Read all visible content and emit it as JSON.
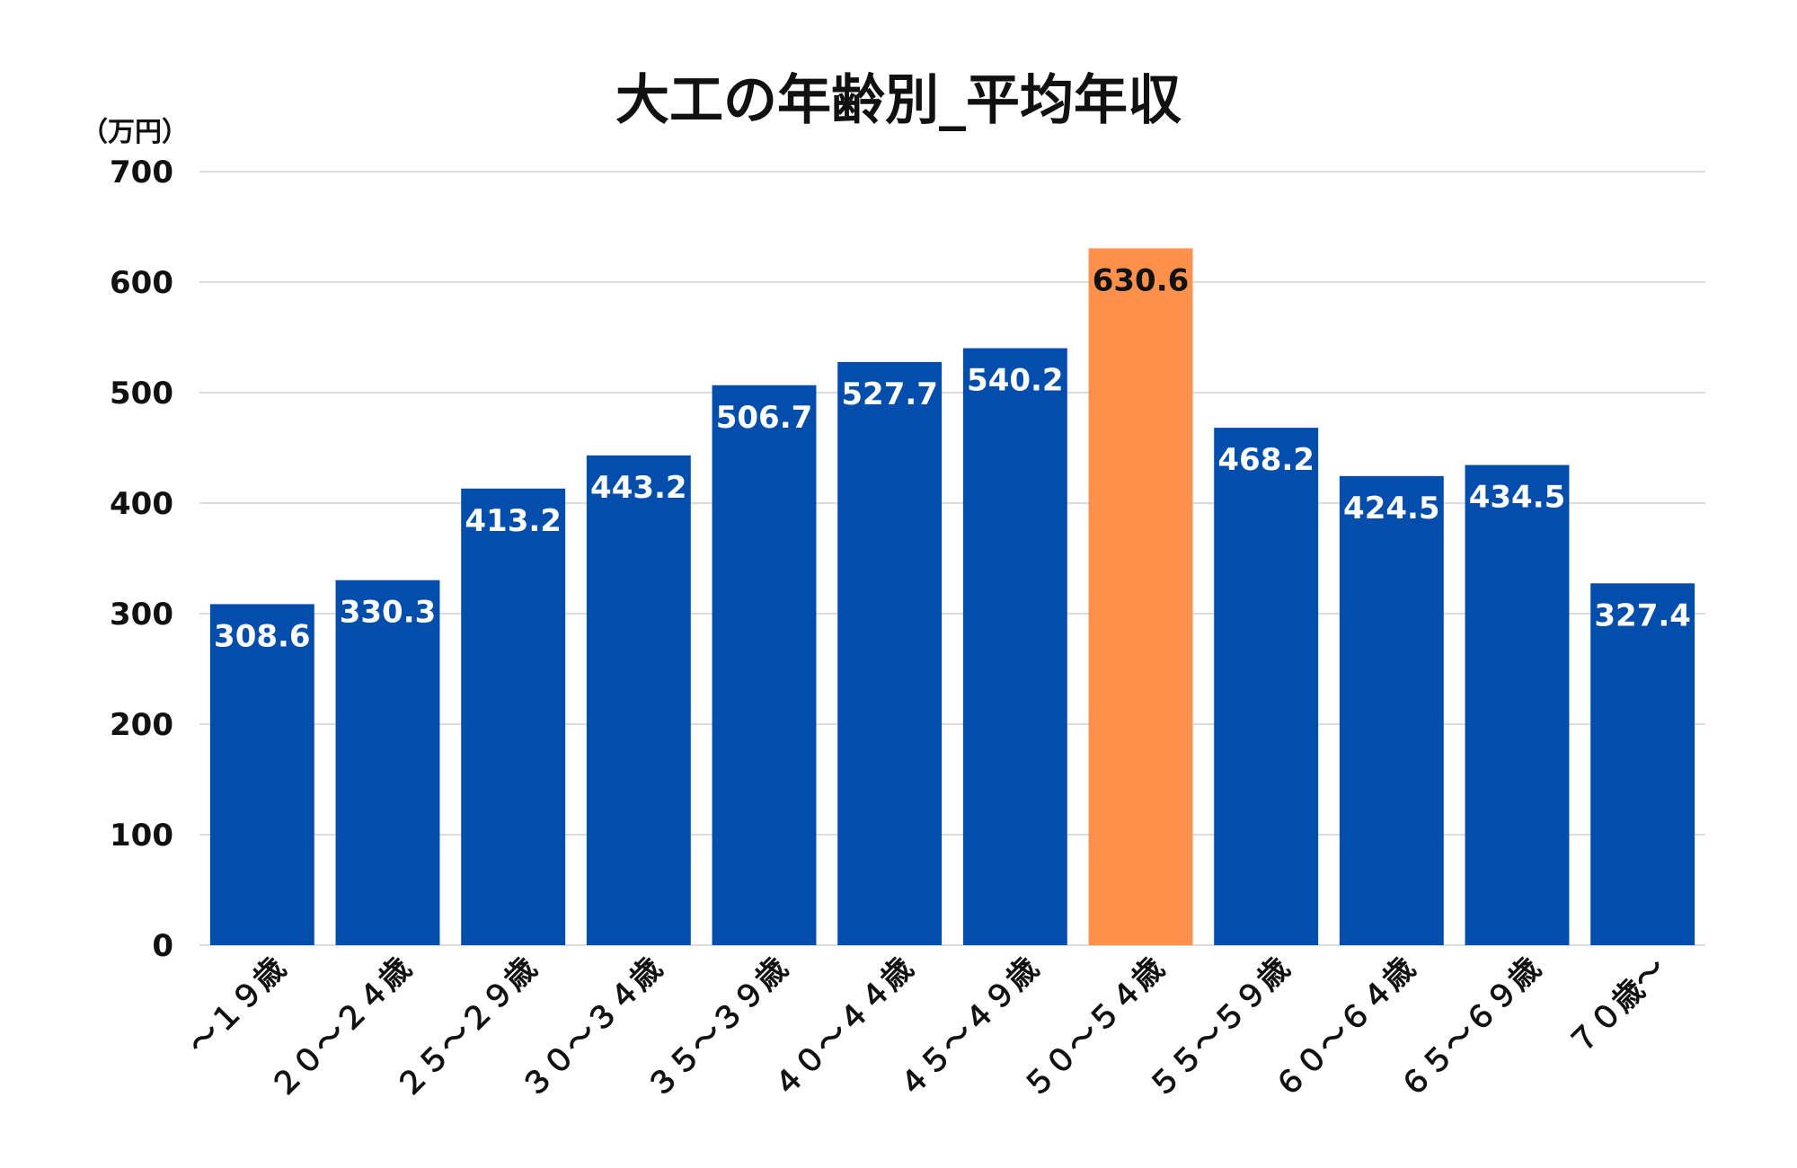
{
  "chart_data": {
    "type": "bar",
    "title": "大工の年齢別_平均年収",
    "ylabel": "（万円）",
    "xlabel": "",
    "ylim": [
      0,
      700
    ],
    "yticks": [
      0,
      100,
      200,
      300,
      400,
      500,
      600,
      700
    ],
    "grid": true,
    "categories": [
      "～１９歳",
      "２０～２４歳",
      "２５～２９歳",
      "３０～３４歳",
      "３５～３９歳",
      "４０～４４歳",
      "４５～４９歳",
      "５０～５４歳",
      "５５～５９歳",
      "６０～６４歳",
      "６５～６９歳",
      "７０歳～"
    ],
    "values": [
      308.6,
      330.3,
      413.2,
      443.2,
      506.7,
      527.7,
      540.2,
      630.6,
      468.2,
      424.5,
      434.5,
      327.4
    ],
    "value_labels": [
      "308.6",
      "330.3",
      "413.2",
      "443.2",
      "506.7",
      "527.7",
      "540.2",
      "630.6",
      "468.2",
      "424.5",
      "434.5",
      "327.4"
    ],
    "highlight_index": 7,
    "colors": {
      "bar": "#034EAD",
      "highlight": "#FF914D",
      "label_on_bar": "#FFFFFF",
      "label_on_highlight": "#111111",
      "grid": "#D0D0D0",
      "text": "#111111"
    }
  }
}
